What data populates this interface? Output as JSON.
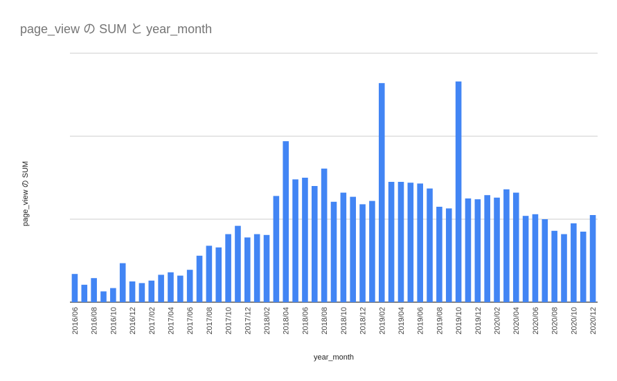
{
  "chart_data": {
    "type": "bar",
    "title": "page_view の SUM と year_month",
    "xlabel": "year_month",
    "ylabel": "page_view の SUM",
    "color": "#4285f4",
    "gridlines": true,
    "categories": [
      "2016/06",
      "2016/07",
      "2016/08",
      "2016/09",
      "2016/10",
      "2016/11",
      "2016/12",
      "2017/01",
      "2017/02",
      "2017/03",
      "2017/04",
      "2017/05",
      "2017/06",
      "2017/07",
      "2017/08",
      "2017/09",
      "2017/10",
      "2017/11",
      "2017/12",
      "2018/01",
      "2018/02",
      "2018/03",
      "2018/04",
      "2018/05",
      "2018/06",
      "2018/07",
      "2018/08",
      "2018/09",
      "2018/10",
      "2018/11",
      "2018/12",
      "2019/01",
      "2019/02",
      "2019/03",
      "2019/04",
      "2019/05",
      "2019/06",
      "2019/07",
      "2019/08",
      "2019/09",
      "2019/10",
      "2019/11",
      "2019/12",
      "2020/01",
      "2020/02",
      "2020/03",
      "2020/04",
      "2020/05",
      "2020/06",
      "2020/07",
      "2020/08",
      "2020/09",
      "2020/10",
      "2020/11",
      "2020/12"
    ],
    "tick_labels": [
      "2016/06",
      "2016/08",
      "2016/10",
      "2016/12",
      "2017/02",
      "2017/04",
      "2017/06",
      "2017/08",
      "2017/10",
      "2017/12",
      "2018/02",
      "2018/04",
      "2018/06",
      "2018/08",
      "2018/10",
      "2018/12",
      "2019/02",
      "2019/04",
      "2019/06",
      "2019/08",
      "2019/10",
      "2019/12",
      "2020/02",
      "2020/04",
      "2020/06",
      "2020/08",
      "2020/10",
      "2020/12"
    ],
    "values": [
      0.34,
      0.21,
      0.29,
      0.13,
      0.17,
      0.47,
      0.25,
      0.23,
      0.26,
      0.33,
      0.36,
      0.32,
      0.39,
      0.56,
      0.68,
      0.66,
      0.82,
      0.92,
      0.78,
      0.82,
      0.81,
      1.28,
      1.94,
      1.48,
      1.5,
      1.4,
      1.61,
      1.21,
      1.32,
      1.27,
      1.18,
      1.22,
      2.64,
      1.45,
      1.45,
      1.44,
      1.43,
      1.37,
      1.15,
      1.13,
      2.66,
      1.25,
      1.24,
      1.29,
      1.26,
      1.36,
      1.32,
      1.04,
      1.06,
      1.0,
      0.86,
      0.82,
      0.95,
      0.85,
      1.05
    ],
    "ylim": [
      0,
      3
    ]
  }
}
